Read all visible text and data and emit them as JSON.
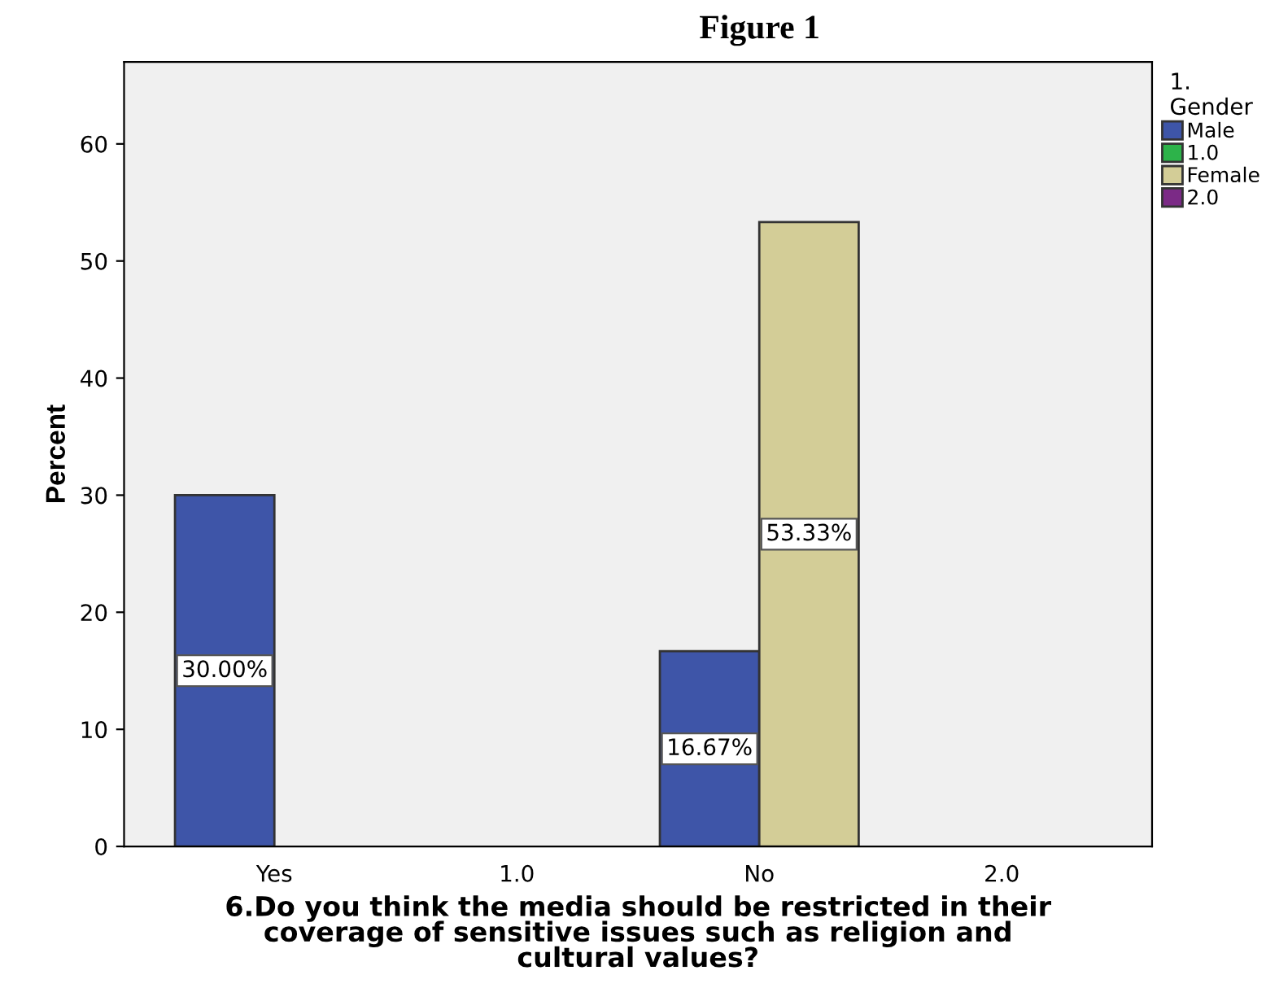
{
  "chart_data": {
    "type": "bar",
    "title": "Figure 1",
    "xlabel": "6.Do you think the media should be restricted in their\ncoverage of sensitive issues such as religion and\ncultural values?",
    "ylabel": "Percent",
    "legend_title": "1.\nGender",
    "categories": [
      "Yes",
      "1.0",
      "No",
      "2.0"
    ],
    "series": [
      {
        "name": "Male",
        "color": "#3e55a8",
        "values": [
          30.0,
          null,
          16.67,
          null
        ],
        "value_labels": [
          "30.00%",
          null,
          "16.67%",
          null
        ]
      },
      {
        "name": "1.0",
        "color": "#2db34a",
        "values": [
          null,
          null,
          null,
          null
        ]
      },
      {
        "name": "Female",
        "color": "#d3cd97",
        "values": [
          null,
          null,
          53.33,
          null
        ],
        "value_labels": [
          null,
          null,
          "53.33%",
          null
        ]
      },
      {
        "name": "2.0",
        "color": "#7b2a86",
        "values": [
          null,
          null,
          null,
          null
        ]
      }
    ],
    "ylim": [
      0,
      67
    ],
    "yticks": [
      0,
      10,
      20,
      30,
      40,
      50,
      60
    ],
    "grid": false,
    "legend": "top right"
  }
}
